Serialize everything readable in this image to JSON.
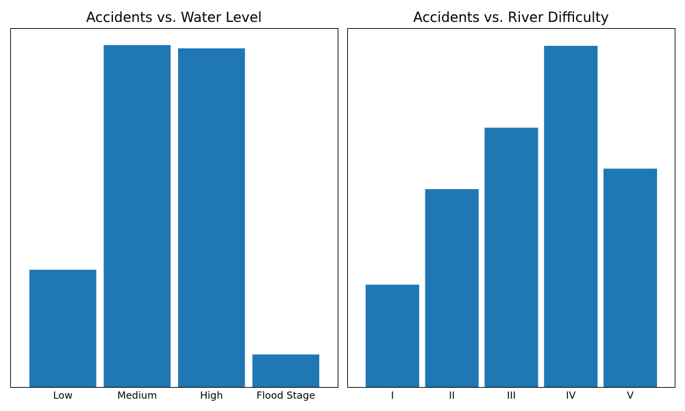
{
  "chart_data": [
    {
      "type": "bar",
      "title": "Accidents vs. Water Level",
      "xlabel": "",
      "ylabel": "",
      "categories": [
        "Low",
        "Medium",
        "High",
        "Flood Stage"
      ],
      "values": [
        36,
        105,
        104,
        10
      ],
      "ylim": [
        0,
        110
      ],
      "grid": false,
      "legend": "none",
      "bar_color": "#1f77b4"
    },
    {
      "type": "bar",
      "title": "Accidents vs. River Difficulty",
      "xlabel": "",
      "ylabel": "",
      "categories": [
        "I",
        "II",
        "III",
        "IV",
        "V"
      ],
      "values": [
        30,
        58,
        76,
        100,
        64
      ],
      "ylim": [
        0,
        105
      ],
      "grid": false,
      "legend": "none",
      "bar_color": "#1f77b4"
    }
  ]
}
